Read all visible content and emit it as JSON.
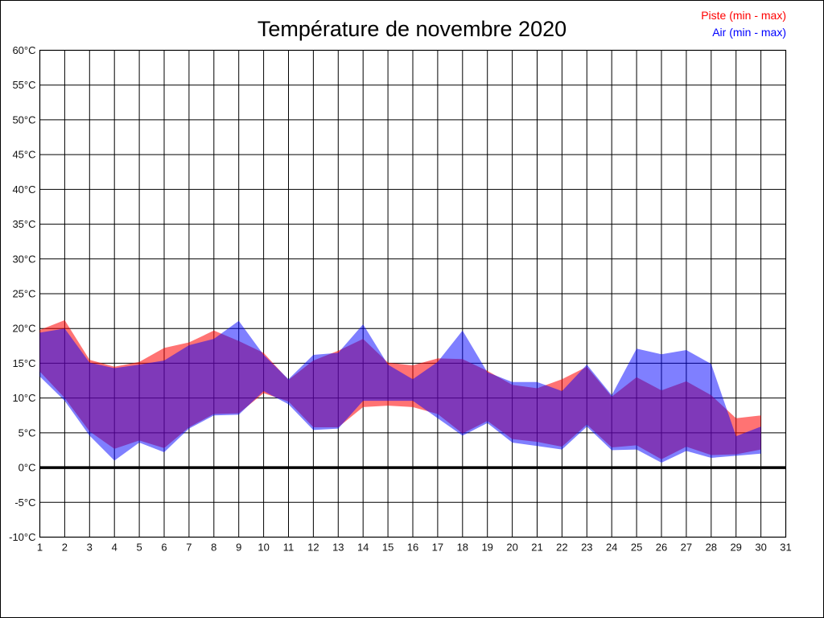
{
  "page": {
    "title": "Température de novembre 2020"
  },
  "legend": {
    "items": [
      {
        "label": "Piste (min - max)",
        "color": "#ff0000"
      },
      {
        "label": "Air (min - max)",
        "color": "#0000ff"
      }
    ],
    "position": "top-right"
  },
  "chart_data": {
    "type": "area",
    "subtype": "min-max-band",
    "title": "Température de novembre 2020",
    "xlabel": "",
    "ylabel": "",
    "xlim": [
      1,
      31
    ],
    "ylim": [
      -10,
      60
    ],
    "x_ticks": [
      1,
      2,
      3,
      4,
      5,
      6,
      7,
      8,
      9,
      10,
      11,
      12,
      13,
      14,
      15,
      16,
      17,
      18,
      19,
      20,
      21,
      22,
      23,
      24,
      25,
      26,
      27,
      28,
      29,
      30,
      31
    ],
    "x_tick_labels": [
      "1",
      "2",
      "3",
      "4",
      "5",
      "6",
      "7",
      "8",
      "9",
      "10",
      "11",
      "12",
      "13",
      "14",
      "15",
      "16",
      "17",
      "18",
      "19",
      "20",
      "21",
      "22",
      "23",
      "24",
      "25",
      "26",
      "27",
      "28",
      "29",
      "30",
      "31"
    ],
    "y_ticks": [
      60,
      55,
      50,
      45,
      40,
      35,
      30,
      25,
      20,
      15,
      10,
      5,
      0,
      -5,
      -10
    ],
    "y_tick_labels": [
      "60°C",
      "55°C",
      "50°C",
      "45°C",
      "40°C",
      "35°C",
      "30°C",
      "25°C",
      "20°C",
      "15°C",
      "10°C",
      "5°C",
      "0°C",
      "-5°C",
      "-10°C"
    ],
    "grid": true,
    "zero_line": true,
    "grid_color": "#000000",
    "days": [
      1,
      2,
      3,
      4,
      5,
      6,
      7,
      8,
      9,
      10,
      11,
      12,
      13,
      14,
      15,
      16,
      17,
      18,
      19,
      20,
      21,
      22,
      23,
      24,
      25,
      26,
      27,
      28,
      29,
      30
    ],
    "series": [
      {
        "name": "Piste (min - max)",
        "fill": "rgba(255,0,0,0.55)",
        "legend_color": "#ff0000",
        "min": [
          13.8,
          10.0,
          5.2,
          2.7,
          3.9,
          2.8,
          5.8,
          7.7,
          7.8,
          10.7,
          9.5,
          5.8,
          5.8,
          8.7,
          8.9,
          8.7,
          7.7,
          4.9,
          6.7,
          4.1,
          3.7,
          3.0,
          6.2,
          2.9,
          3.2,
          1.2,
          3.0,
          1.8,
          1.9,
          2.6
        ],
        "max": [
          19.8,
          21.2,
          15.5,
          14.5,
          15.2,
          17.2,
          18.0,
          19.7,
          18.2,
          16.5,
          12.6,
          15.4,
          16.8,
          18.5,
          15.1,
          14.7,
          15.7,
          15.6,
          13.9,
          11.9,
          11.4,
          12.7,
          14.5,
          10.2,
          13.0,
          11.1,
          12.4,
          10.4,
          7.1,
          7.5
        ]
      },
      {
        "name": "Air (min - max)",
        "fill": "rgba(0,0,255,0.5)",
        "legend_color": "#0000ff",
        "min": [
          13.1,
          9.6,
          4.6,
          1.0,
          3.6,
          2.2,
          5.6,
          7.5,
          7.6,
          11.0,
          9.1,
          5.4,
          5.6,
          9.6,
          9.6,
          9.6,
          7.1,
          4.6,
          6.4,
          3.6,
          3.1,
          2.6,
          5.9,
          2.5,
          2.6,
          0.7,
          2.4,
          1.4,
          1.7,
          2.0
        ],
        "max": [
          19.4,
          20.0,
          15.1,
          14.3,
          14.8,
          15.4,
          17.6,
          18.5,
          21.1,
          16.2,
          12.7,
          16.2,
          16.5,
          20.6,
          14.8,
          12.7,
          15.2,
          19.7,
          13.7,
          12.3,
          12.3,
          11.0,
          14.8,
          10.4,
          17.1,
          16.3,
          16.9,
          14.9,
          4.5,
          5.9
        ]
      }
    ],
    "legend_position": "top-right"
  }
}
